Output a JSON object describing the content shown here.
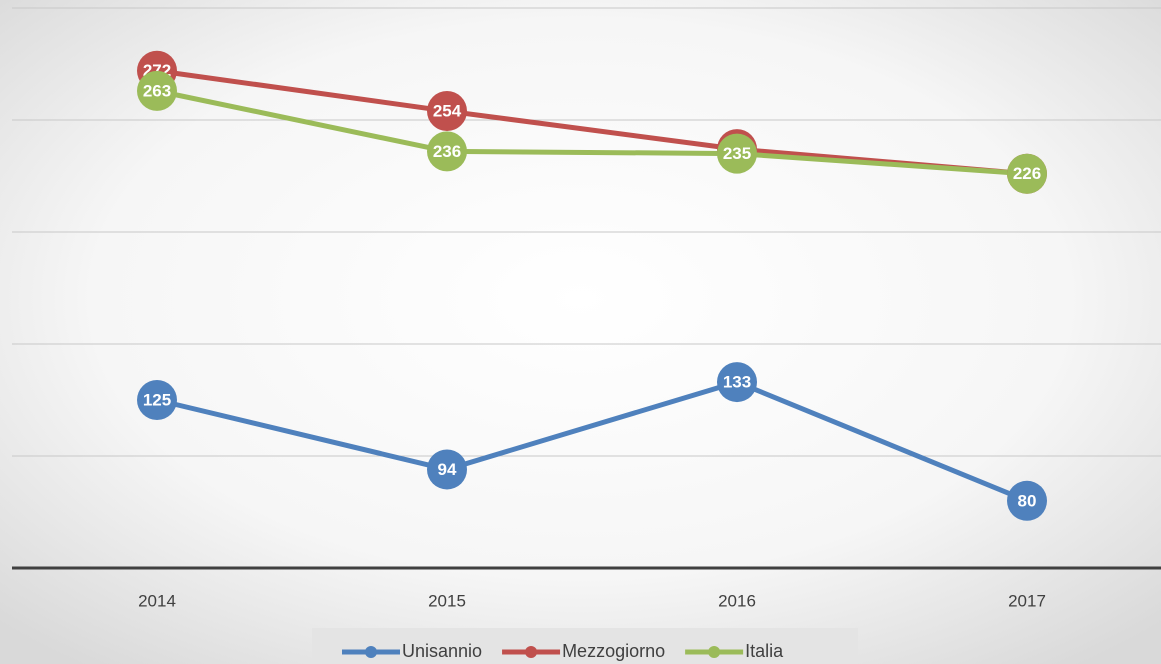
{
  "chart_data": {
    "type": "line",
    "categories": [
      "2014",
      "2015",
      "2016",
      "2017"
    ],
    "series": [
      {
        "name": "Unisannio",
        "color": "#4f81bd",
        "values": [
          125,
          94,
          133,
          80
        ]
      },
      {
        "name": "Mezzogiorno",
        "color": "#c0504d",
        "values": [
          272,
          254,
          237,
          226
        ]
      },
      {
        "name": "Italia",
        "color": "#9bbb59",
        "values": [
          263,
          236,
          235,
          226
        ]
      }
    ],
    "ylim": [
      50,
      300
    ],
    "yticks": [
      50,
      100,
      150,
      200,
      250,
      300
    ],
    "grid": true,
    "legend": "bottom"
  }
}
